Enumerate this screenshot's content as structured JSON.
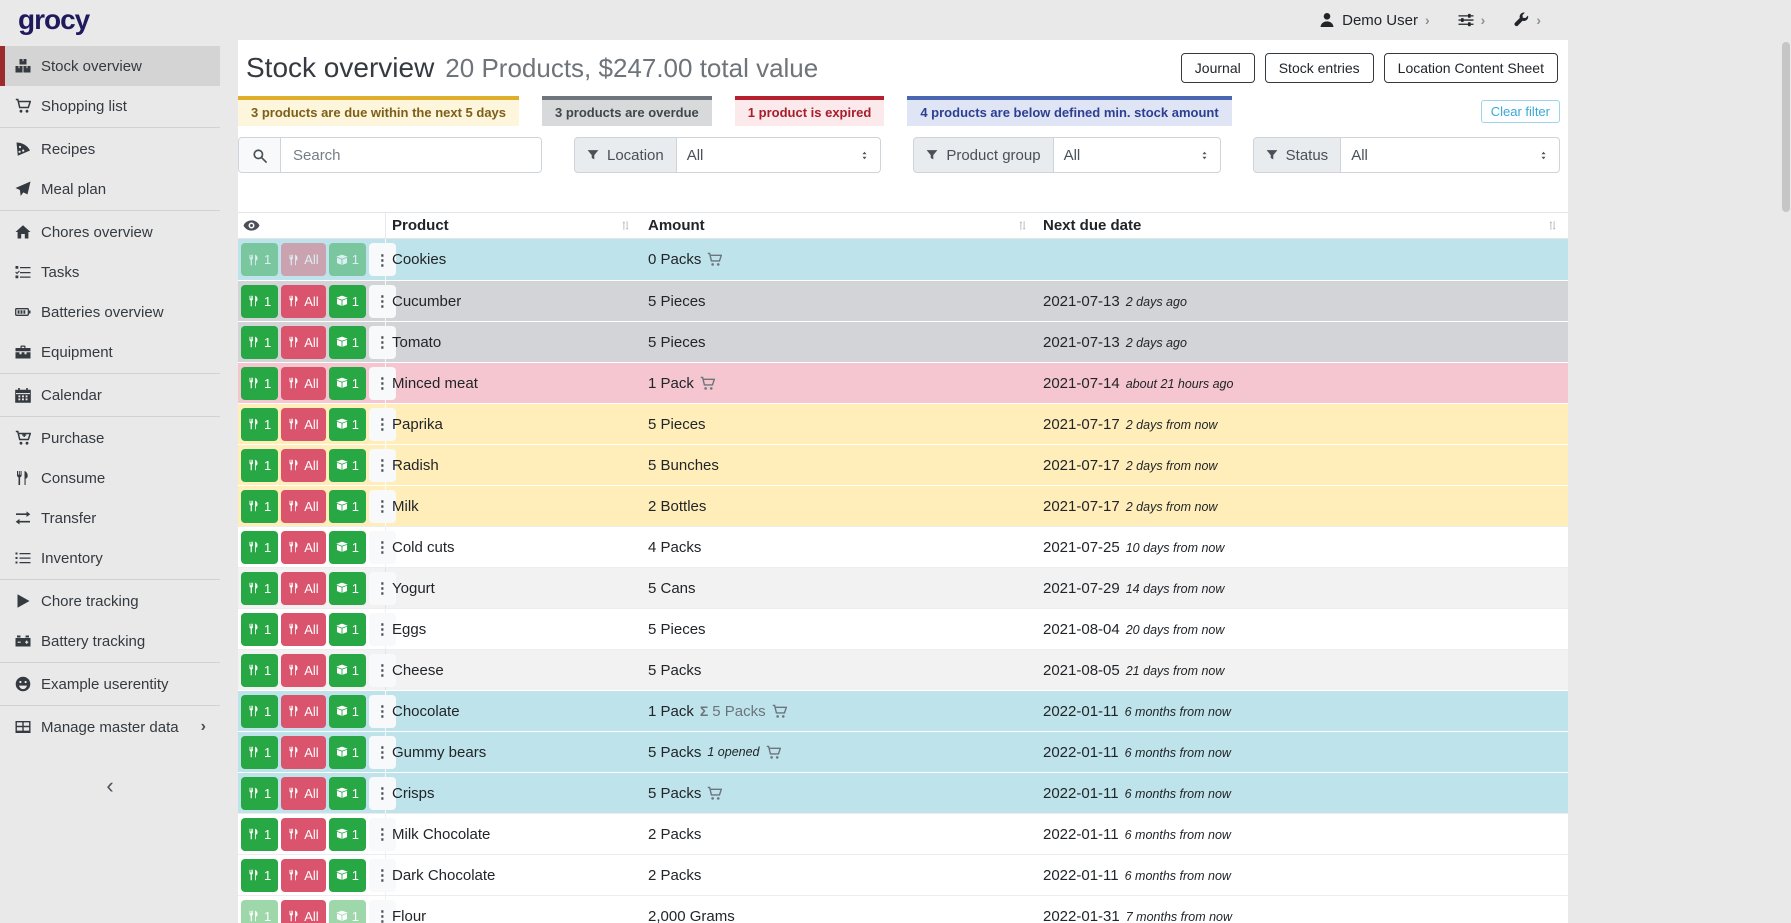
{
  "brand": "grocy",
  "topbar": {
    "user": {
      "icon": "user-icon",
      "label": "Demo User"
    },
    "menus": [
      {
        "name": "settings-menu",
        "icon": "sliders-icon"
      },
      {
        "name": "admin-menu",
        "icon": "wrench-icon"
      }
    ]
  },
  "sidebar": {
    "groups": [
      {
        "items": [
          {
            "icon": "boxes-icon",
            "label": "Stock overview",
            "active": true
          },
          {
            "icon": "shopping-cart-icon",
            "label": "Shopping list"
          }
        ]
      },
      {
        "items": [
          {
            "icon": "pizza-slice-icon",
            "label": "Recipes"
          },
          {
            "icon": "paper-plane-icon",
            "label": "Meal plan"
          }
        ]
      },
      {
        "items": [
          {
            "icon": "home-icon",
            "label": "Chores overview"
          },
          {
            "icon": "tasks-icon",
            "label": "Tasks"
          },
          {
            "icon": "battery-icon",
            "label": "Batteries overview"
          },
          {
            "icon": "toolbox-icon",
            "label": "Equipment"
          }
        ]
      },
      {
        "items": [
          {
            "icon": "calendar-icon",
            "label": "Calendar"
          }
        ]
      },
      {
        "items": [
          {
            "icon": "cart-plus-icon",
            "label": "Purchase"
          },
          {
            "icon": "utensils-icon",
            "label": "Consume"
          },
          {
            "icon": "exchange-icon",
            "label": "Transfer"
          },
          {
            "icon": "list-icon",
            "label": "Inventory"
          }
        ]
      },
      {
        "items": [
          {
            "icon": "play-icon",
            "label": "Chore tracking"
          },
          {
            "icon": "car-battery-icon",
            "label": "Battery tracking"
          }
        ]
      },
      {
        "items": [
          {
            "icon": "smiley-icon",
            "label": "Example userentity"
          }
        ]
      },
      {
        "items": [
          {
            "icon": "table-icon",
            "label": "Manage master data",
            "chevron": true
          }
        ]
      }
    ]
  },
  "page": {
    "title": "Stock overview",
    "subtitle": "20 Products, $247.00 total value",
    "actions": [
      "Journal",
      "Stock entries",
      "Location Content Sheet"
    ],
    "clear_filter_label": "Clear filter",
    "banners": [
      {
        "type": "due-soon",
        "text": "3 products are due within the next 5 days"
      },
      {
        "type": "overdue",
        "text": "3 products are overdue"
      },
      {
        "type": "expired",
        "text": "1 product is expired"
      },
      {
        "type": "below-min",
        "text": "4 products are below defined min. stock amount"
      }
    ],
    "filters": {
      "search_placeholder": "Search",
      "groups": [
        {
          "label": "Location",
          "value": "All"
        },
        {
          "label": "Product group",
          "value": "All"
        },
        {
          "label": "Status",
          "value": "All"
        }
      ]
    }
  },
  "table": {
    "columns": [
      {
        "label": "Product"
      },
      {
        "label": "Amount"
      },
      {
        "label": "Next due date"
      }
    ],
    "row_buttons": {
      "consume_one": "1",
      "consume_all": "All",
      "open_one": "1"
    },
    "rows": [
      {
        "product": "Cookies",
        "amount": "0 Packs",
        "aggregate": "",
        "note": "",
        "cart": true,
        "date": "",
        "relative": "",
        "status": "below-min",
        "stripe": false,
        "disabled": [
          "consume-one",
          "consume-all",
          "open-one"
        ]
      },
      {
        "product": "Cucumber",
        "amount": "5 Pieces",
        "aggregate": "",
        "note": "",
        "cart": false,
        "date": "2021-07-13",
        "relative": "2 days ago",
        "status": "overdue",
        "stripe": false,
        "disabled": []
      },
      {
        "product": "Tomato",
        "amount": "5 Pieces",
        "aggregate": "",
        "note": "",
        "cart": false,
        "date": "2021-07-13",
        "relative": "2 days ago",
        "status": "overdue",
        "stripe": false,
        "disabled": []
      },
      {
        "product": "Minced meat",
        "amount": "1 Pack",
        "aggregate": "",
        "note": "",
        "cart": true,
        "date": "2021-07-14",
        "relative": "about 21 hours ago",
        "status": "expired",
        "stripe": false,
        "disabled": []
      },
      {
        "product": "Paprika",
        "amount": "5 Pieces",
        "aggregate": "",
        "note": "",
        "cart": false,
        "date": "2021-07-17",
        "relative": "2 days from now",
        "status": "due-soon",
        "stripe": false,
        "disabled": []
      },
      {
        "product": "Radish",
        "amount": "5 Bunches",
        "aggregate": "",
        "note": "",
        "cart": false,
        "date": "2021-07-17",
        "relative": "2 days from now",
        "status": "due-soon",
        "stripe": false,
        "disabled": []
      },
      {
        "product": "Milk",
        "amount": "2 Bottles",
        "aggregate": "",
        "note": "",
        "cart": false,
        "date": "2021-07-17",
        "relative": "2 days from now",
        "status": "due-soon",
        "stripe": false,
        "disabled": []
      },
      {
        "product": "Cold cuts",
        "amount": "4 Packs",
        "aggregate": "",
        "note": "",
        "cart": false,
        "date": "2021-07-25",
        "relative": "10 days from now",
        "status": "",
        "stripe": false,
        "disabled": []
      },
      {
        "product": "Yogurt",
        "amount": "5 Cans",
        "aggregate": "",
        "note": "",
        "cart": false,
        "date": "2021-07-29",
        "relative": "14 days from now",
        "status": "",
        "stripe": true,
        "disabled": []
      },
      {
        "product": "Eggs",
        "amount": "5 Pieces",
        "aggregate": "",
        "note": "",
        "cart": false,
        "date": "2021-08-04",
        "relative": "20 days from now",
        "status": "",
        "stripe": false,
        "disabled": []
      },
      {
        "product": "Cheese",
        "amount": "5 Packs",
        "aggregate": "",
        "note": "",
        "cart": false,
        "date": "2021-08-05",
        "relative": "21 days from now",
        "status": "",
        "stripe": true,
        "disabled": []
      },
      {
        "product": "Chocolate",
        "amount": "1 Pack",
        "aggregate": "5 Packs",
        "note": "",
        "cart": true,
        "date": "2022-01-11",
        "relative": "6 months from now",
        "status": "below-min",
        "stripe": false,
        "disabled": []
      },
      {
        "product": "Gummy bears",
        "amount": "5 Packs",
        "aggregate": "",
        "note": "1 opened",
        "cart": true,
        "date": "2022-01-11",
        "relative": "6 months from now",
        "status": "below-min",
        "stripe": false,
        "disabled": []
      },
      {
        "product": "Crisps",
        "amount": "5 Packs",
        "aggregate": "",
        "note": "",
        "cart": true,
        "date": "2022-01-11",
        "relative": "6 months from now",
        "status": "below-min",
        "stripe": false,
        "disabled": []
      },
      {
        "product": "Milk Chocolate",
        "amount": "2 Packs",
        "aggregate": "",
        "note": "",
        "cart": false,
        "date": "2022-01-11",
        "relative": "6 months from now",
        "status": "",
        "stripe": false,
        "disabled": []
      },
      {
        "product": "Dark Chocolate",
        "amount": "2 Packs",
        "aggregate": "",
        "note": "",
        "cart": false,
        "date": "2022-01-11",
        "relative": "6 months from now",
        "status": "",
        "stripe": false,
        "disabled": []
      },
      {
        "product": "Flour",
        "amount": "2,000 Grams",
        "aggregate": "",
        "note": "",
        "cart": false,
        "date": "2022-01-31",
        "relative": "7 months from now",
        "status": "",
        "stripe": false,
        "disabled": [
          "consume-one",
          "open-one"
        ]
      }
    ]
  },
  "colors": {
    "brand_logo": "#1f1a5e",
    "sidebar_active_border": "#9c2b2e",
    "button_success": "#28a745",
    "button_danger": "#d9546c",
    "clear_filter_accent": "#3ca9d2",
    "row_status": {
      "below-min": "#bee3ea",
      "overdue": "#d2d4d7",
      "expired": "#f5c6cf",
      "due-soon": "#ffeeba",
      "stripe": "#f2f2f2"
    },
    "banners": {
      "due-soon": {
        "bar": "#dfaf2c",
        "bg": "#fdf5dc",
        "text": "#7d6018"
      },
      "overdue": {
        "bar": "#6e757c",
        "bg": "#d7d9db",
        "text": "#41464b"
      },
      "expired": {
        "bar": "#b61f2e",
        "bg": "#fbe9ec",
        "text": "#a71d2a"
      },
      "below-min": {
        "bar": "#4a66b0",
        "bg": "#dfe5f4",
        "text": "#2d3f92"
      }
    }
  }
}
